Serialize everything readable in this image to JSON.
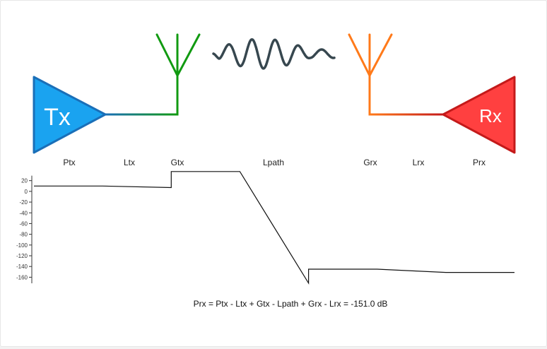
{
  "transmitter": {
    "label": "Tx",
    "color": "#1aa3f0",
    "border": "#1a6fb8"
  },
  "receiver": {
    "label": "Rx",
    "color": "#ff4040",
    "border": "#c41a1a"
  },
  "tx_antenna": {
    "color": "#119a11"
  },
  "rx_antenna": {
    "color": "#ff7a1a"
  },
  "wave": {
    "color": "#37474f"
  },
  "stages": [
    "Ptx",
    "Ltx",
    "Gtx",
    "Lpath",
    "Grx",
    "Lrx",
    "Prx"
  ],
  "formula": "Prx = Ptx - Ltx + Gtx - Lpath + Grx - Lrx = -151.0 dB",
  "chart_data": {
    "type": "line",
    "ylim": [
      -170,
      38
    ],
    "y_ticks": [
      20,
      0,
      -20,
      -40,
      -60,
      -80,
      -100,
      -120,
      -140,
      -160
    ],
    "y_tick_labels": [
      "20",
      "0",
      "-20",
      "-40",
      "-60",
      "-80",
      "-100",
      "-120",
      "-140",
      "-160"
    ],
    "series": [
      {
        "x": [
          0,
          1,
          2,
          2,
          3,
          4,
          4,
          5,
          6,
          7
        ],
        "values": [
          10,
          10,
          7,
          37,
          37,
          -171,
          -145,
          -145,
          -151,
          -151
        ]
      }
    ]
  }
}
